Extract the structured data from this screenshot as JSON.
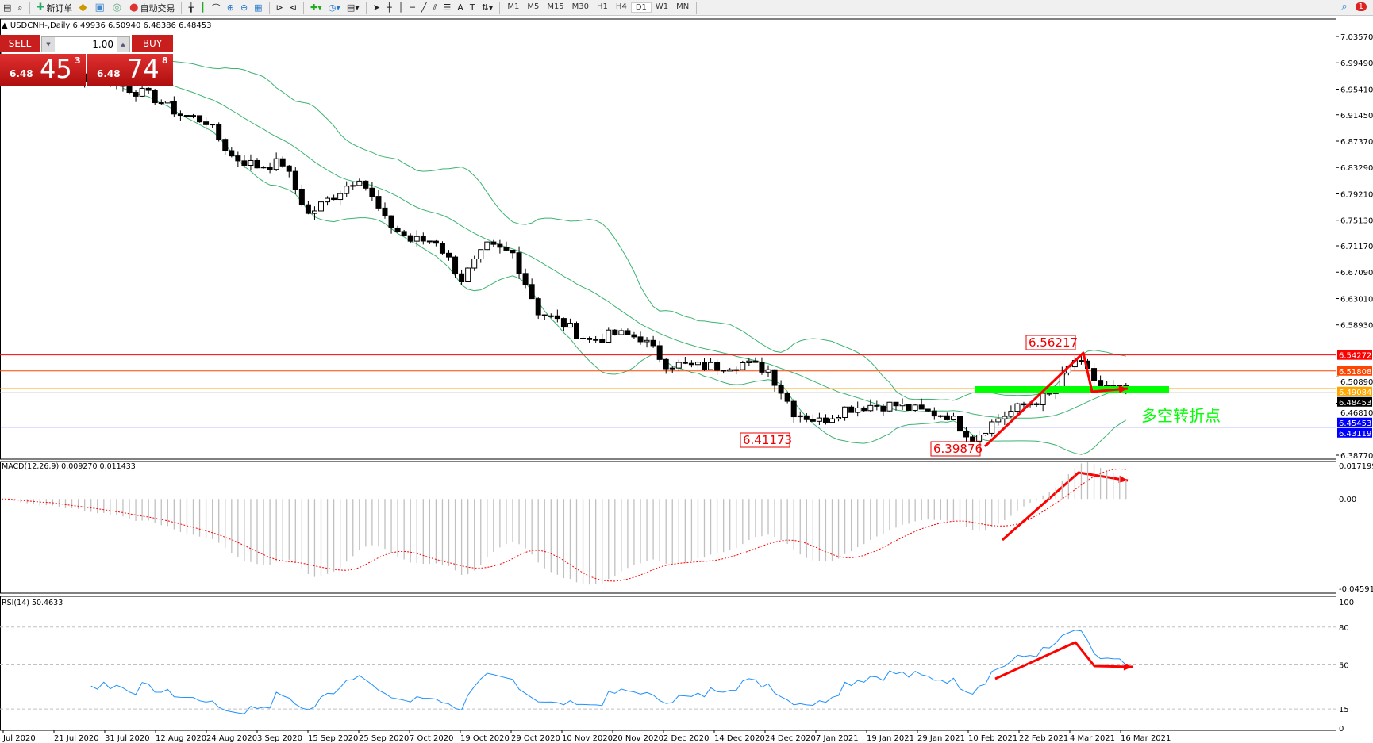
{
  "toolbar": {
    "items": [
      {
        "icon": "new-order-icon",
        "label": "新订单"
      },
      {
        "icon": "history-icon",
        "label": ""
      },
      {
        "icon": "signals-icon",
        "label": ""
      },
      {
        "icon": "radio-icon",
        "label": ""
      },
      {
        "icon": "auto-trading-icon",
        "label": "自动交易"
      }
    ],
    "timeframes": [
      "M1",
      "M5",
      "M15",
      "M30",
      "H1",
      "H4",
      "D1",
      "W1",
      "MN"
    ],
    "active_timeframe": "D1",
    "notification_count": "1"
  },
  "chart_header": "USDCNH-,Daily  6.49936 6.50940 6.48386 6.48453",
  "trade_panel": {
    "sell_label": "SELL",
    "buy_label": "BUY",
    "lot": "1.00",
    "sell_prefix": "6.48",
    "sell_big": "45",
    "sell_tiny": "3",
    "buy_prefix": "6.48",
    "buy_big": "74",
    "buy_tiny": "8"
  },
  "price_axis": [
    "7.03570",
    "6.99490",
    "6.95410",
    "6.91450",
    "6.87370",
    "6.83290",
    "6.79210",
    "6.75130",
    "6.71170",
    "6.67090",
    "6.63010",
    "6.58930",
    "6.50890",
    "6.46810",
    "6.38770"
  ],
  "price_lines": [
    {
      "value": "6.54272",
      "color": "#ff0000"
    },
    {
      "value": "6.51808",
      "color": "#ff4500"
    },
    {
      "value": "6.49084",
      "color": "#ffa500"
    },
    {
      "value": "6.48453",
      "color": "#000000",
      "line": "#c0c0c0"
    },
    {
      "value": "6.45453",
      "color": "#0000ff"
    },
    {
      "value": "6.43119",
      "color": "#0000ff"
    }
  ],
  "annotations": {
    "high": "6.56217",
    "low1": "6.41173",
    "low2": "6.39876",
    "pivot_text": "多空转折点",
    "pivot_color": "#00ff00",
    "arrow_color": "#ff0000"
  },
  "weekly_closes": [
    7.0,
    6.99,
    6.985,
    6.975,
    6.97,
    6.955,
    6.94,
    6.915,
    6.905,
    6.85,
    6.835,
    6.84,
    6.76,
    6.79,
    6.82,
    6.75,
    6.72,
    6.72,
    6.66,
    6.71,
    6.7,
    6.61,
    6.59,
    6.565,
    6.575,
    6.57,
    6.53,
    6.525,
    6.525,
    6.53,
    6.52,
    6.455,
    6.44,
    6.46,
    6.465,
    6.465,
    6.455,
    6.45,
    6.415,
    6.445,
    6.465,
    6.48,
    6.535,
    6.495,
    6.485
  ],
  "macd": {
    "label": "MACD(12,26,9) 0.009270 0.011433",
    "axis": [
      "0.017199",
      "0.00",
      "-0.045919"
    ]
  },
  "rsi": {
    "label": "RSI(14) 50.4633",
    "axis": [
      "100",
      "80",
      "50",
      "15",
      "0"
    ]
  },
  "dates": [
    "Jul 2020",
    "21 Jul 2020",
    "31 Jul 2020",
    "12 Aug 2020",
    "24 Aug 2020",
    "3 Sep 2020",
    "15 Sep 2020",
    "25 Sep 2020",
    "7 Oct 2020",
    "19 Oct 2020",
    "29 Oct 2020",
    "10 Nov 2020",
    "20 Nov 2020",
    "2 Dec 2020",
    "14 Dec 2020",
    "24 Dec 2020",
    "7 Jan 2021",
    "19 Jan 2021",
    "29 Jan 2021",
    "10 Feb 2021",
    "22 Feb 2021",
    "4 Mar 2021",
    "16 Mar 2021"
  ],
  "colors": {
    "bands": "#3cb371",
    "macd_hist": "#c0c0c0",
    "macd_signal": "#ff0000",
    "rsi": "#1e90ff"
  }
}
